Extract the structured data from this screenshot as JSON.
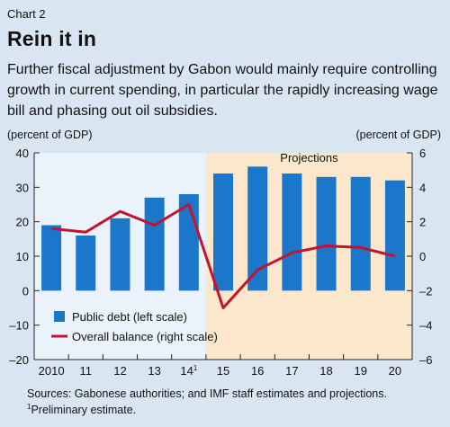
{
  "header": {
    "chart_label": "Chart 2",
    "title": "Rein it in",
    "subtitle": "Further fiscal adjustment by Gabon would mainly require controlling growth in current spending, in particular the rapidly increasing wage bill and phasing out oil subsidies."
  },
  "chart_data": {
    "type": "bar",
    "categories": [
      "2010",
      "11",
      "12",
      "13",
      "14",
      "15",
      "16",
      "17",
      "18",
      "19",
      "20"
    ],
    "category_footnote": {
      "index": 4,
      "mark": "1"
    },
    "left_axis": {
      "unit_label": "(percent of GDP)",
      "ylim": [
        -20,
        40
      ],
      "ticks": [
        -20,
        -10,
        0,
        10,
        20,
        30,
        40
      ]
    },
    "right_axis": {
      "unit_label": "(percent of GDP)",
      "ylim": [
        -6,
        6
      ],
      "ticks": [
        -6,
        -4,
        -2,
        0,
        2,
        4,
        6
      ]
    },
    "series": [
      {
        "name": "Public debt (left scale)",
        "kind": "bar",
        "axis": "left",
        "color": "#1a77c9",
        "values": [
          19,
          16,
          21,
          27,
          28,
          34,
          36,
          34,
          33,
          33,
          32
        ]
      },
      {
        "name": "Overall balance (right scale)",
        "kind": "line",
        "axis": "right",
        "color": "#c4122f",
        "values": [
          1.6,
          1.4,
          2.6,
          1.8,
          3.0,
          -3.0,
          -0.8,
          0.2,
          0.6,
          0.5,
          0.0
        ]
      }
    ],
    "projection": {
      "label": "Projections",
      "start_index": 5,
      "color": "#fbe8cc"
    },
    "plot_background": "#eaf3fb",
    "legend_position": "bottom-left",
    "grid": false
  },
  "footer": {
    "source": "Sources: Gabonese authorities; and IMF staff estimates and projections.",
    "note_mark": "1",
    "note_text": "Preliminary estimate."
  }
}
